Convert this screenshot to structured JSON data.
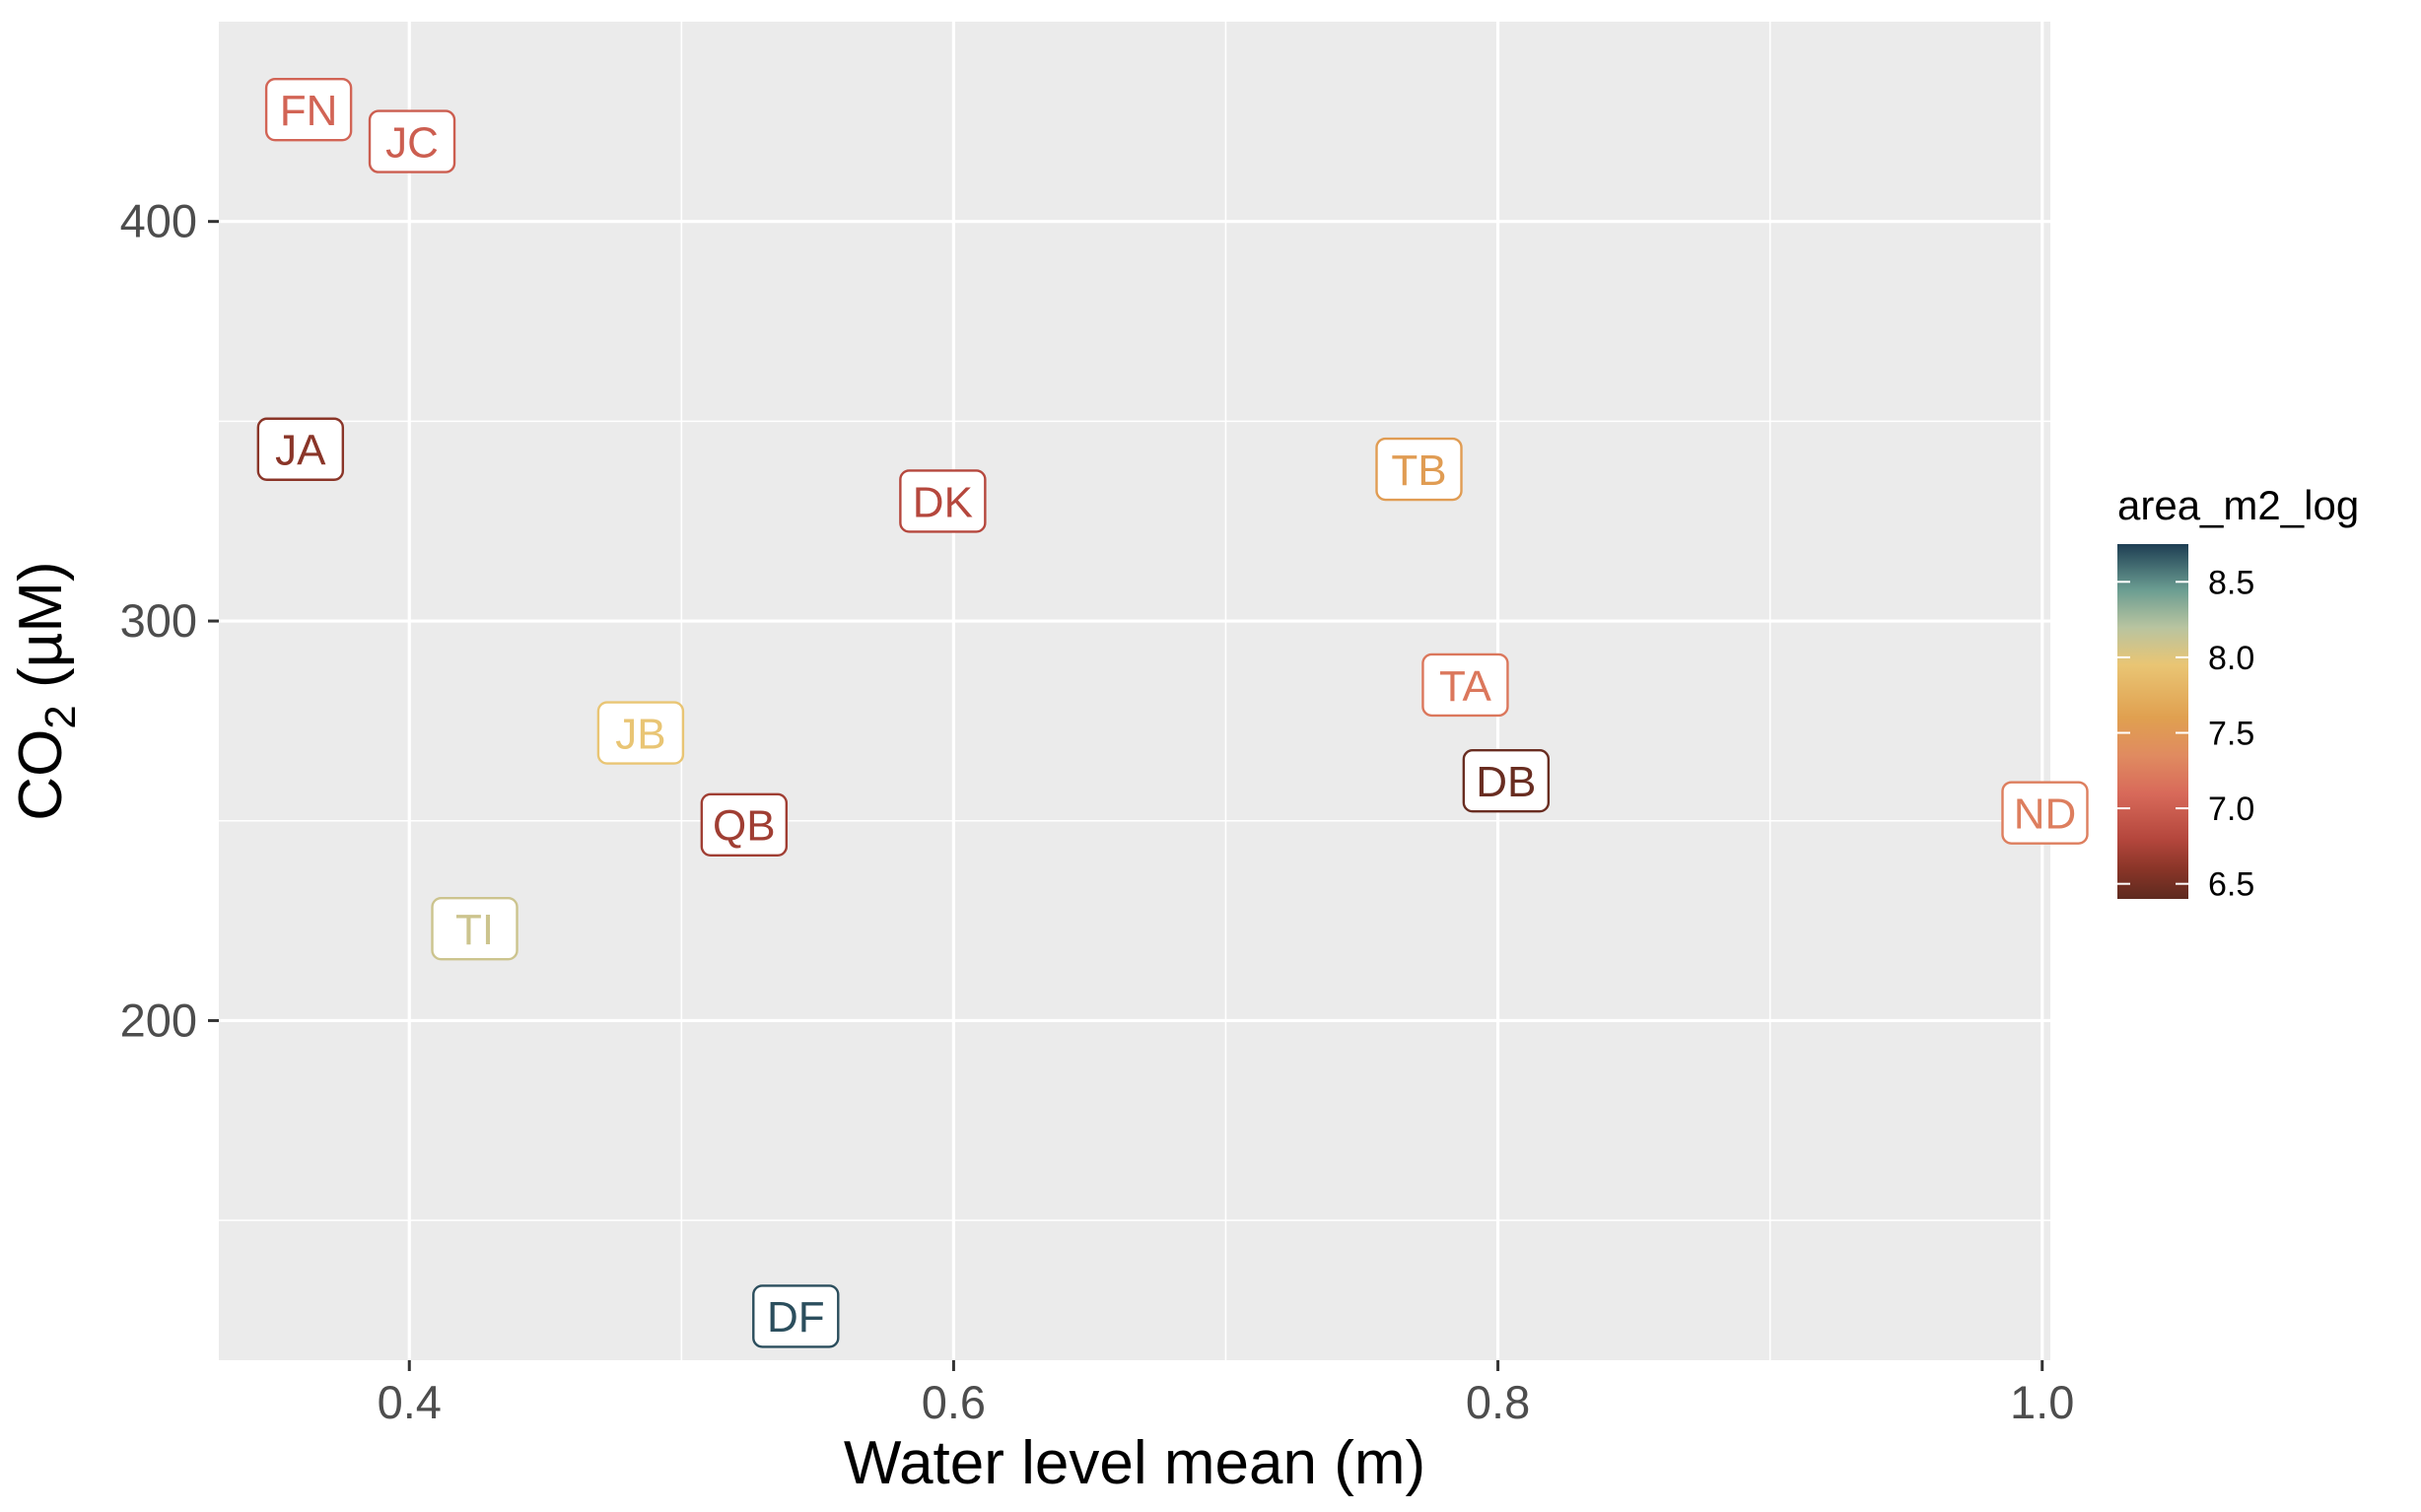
{
  "chart_data": {
    "type": "scatter",
    "geom": "label",
    "xlabel": "Water level mean (m)",
    "ylabel": {
      "main": "CO",
      "subscript": "2",
      "suffix": " (µM)"
    },
    "xlim": [
      0.33,
      1.003
    ],
    "ylim": [
      115,
      450
    ],
    "x_ticks": [
      0.4,
      0.6,
      0.8,
      1.0
    ],
    "x_tick_labels": [
      "0.4",
      "0.6",
      "0.8",
      "1.0"
    ],
    "x_minor_ticks": [
      0.5,
      0.7,
      0.9
    ],
    "y_ticks": [
      200,
      300,
      400
    ],
    "y_tick_labels": [
      "200",
      "300",
      "400"
    ],
    "y_minor_ticks": [
      150,
      250,
      350
    ],
    "grid": true,
    "panel_background": "#ebebeb",
    "grid_color": "#ffffff",
    "legend": {
      "title": "area_m2_log",
      "placement": "right",
      "min": 6.4,
      "max": 8.75,
      "breaks": [
        6.5,
        7.0,
        7.5,
        8.0,
        8.5
      ],
      "break_labels": [
        "6.5",
        "7.0",
        "7.5",
        "8.0",
        "8.5"
      ],
      "gradient": [
        {
          "value": 6.4,
          "color": "#5e2a1f"
        },
        {
          "value": 6.6,
          "color": "#8a3528"
        },
        {
          "value": 6.8,
          "color": "#b5473d"
        },
        {
          "value": 7.1,
          "color": "#d86a5a"
        },
        {
          "value": 7.35,
          "color": "#e08b60"
        },
        {
          "value": 7.6,
          "color": "#e0a050"
        },
        {
          "value": 7.95,
          "color": "#e9c574"
        },
        {
          "value": 8.2,
          "color": "#b8c4a0"
        },
        {
          "value": 8.45,
          "color": "#6a9c91"
        },
        {
          "value": 8.75,
          "color": "#1e3e53"
        }
      ]
    },
    "points": [
      {
        "label": "FN",
        "x": 0.363,
        "y": 428,
        "area_m2_log": 7.05
      },
      {
        "label": "JC",
        "x": 0.401,
        "y": 420,
        "area_m2_log": 7.0
      },
      {
        "label": "JA",
        "x": 0.36,
        "y": 343,
        "area_m2_log": 6.6
      },
      {
        "label": "DK",
        "x": 0.596,
        "y": 330,
        "area_m2_log": 6.8
      },
      {
        "label": "TB",
        "x": 0.771,
        "y": 338,
        "area_m2_log": 7.55
      },
      {
        "label": "TA",
        "x": 0.788,
        "y": 284,
        "area_m2_log": 7.2
      },
      {
        "label": "DB",
        "x": 0.803,
        "y": 260,
        "area_m2_log": 6.45
      },
      {
        "label": "ND",
        "x": 1.001,
        "y": 252,
        "area_m2_log": 7.25
      },
      {
        "label": "JB",
        "x": 0.485,
        "y": 272,
        "area_m2_log": 7.95
      },
      {
        "label": "QB",
        "x": 0.523,
        "y": 249,
        "area_m2_log": 6.7
      },
      {
        "label": "TI",
        "x": 0.424,
        "y": 223,
        "area_m2_log": 8.1
      },
      {
        "label": "DF",
        "x": 0.542,
        "y": 126,
        "area_m2_log": 8.7
      }
    ]
  }
}
